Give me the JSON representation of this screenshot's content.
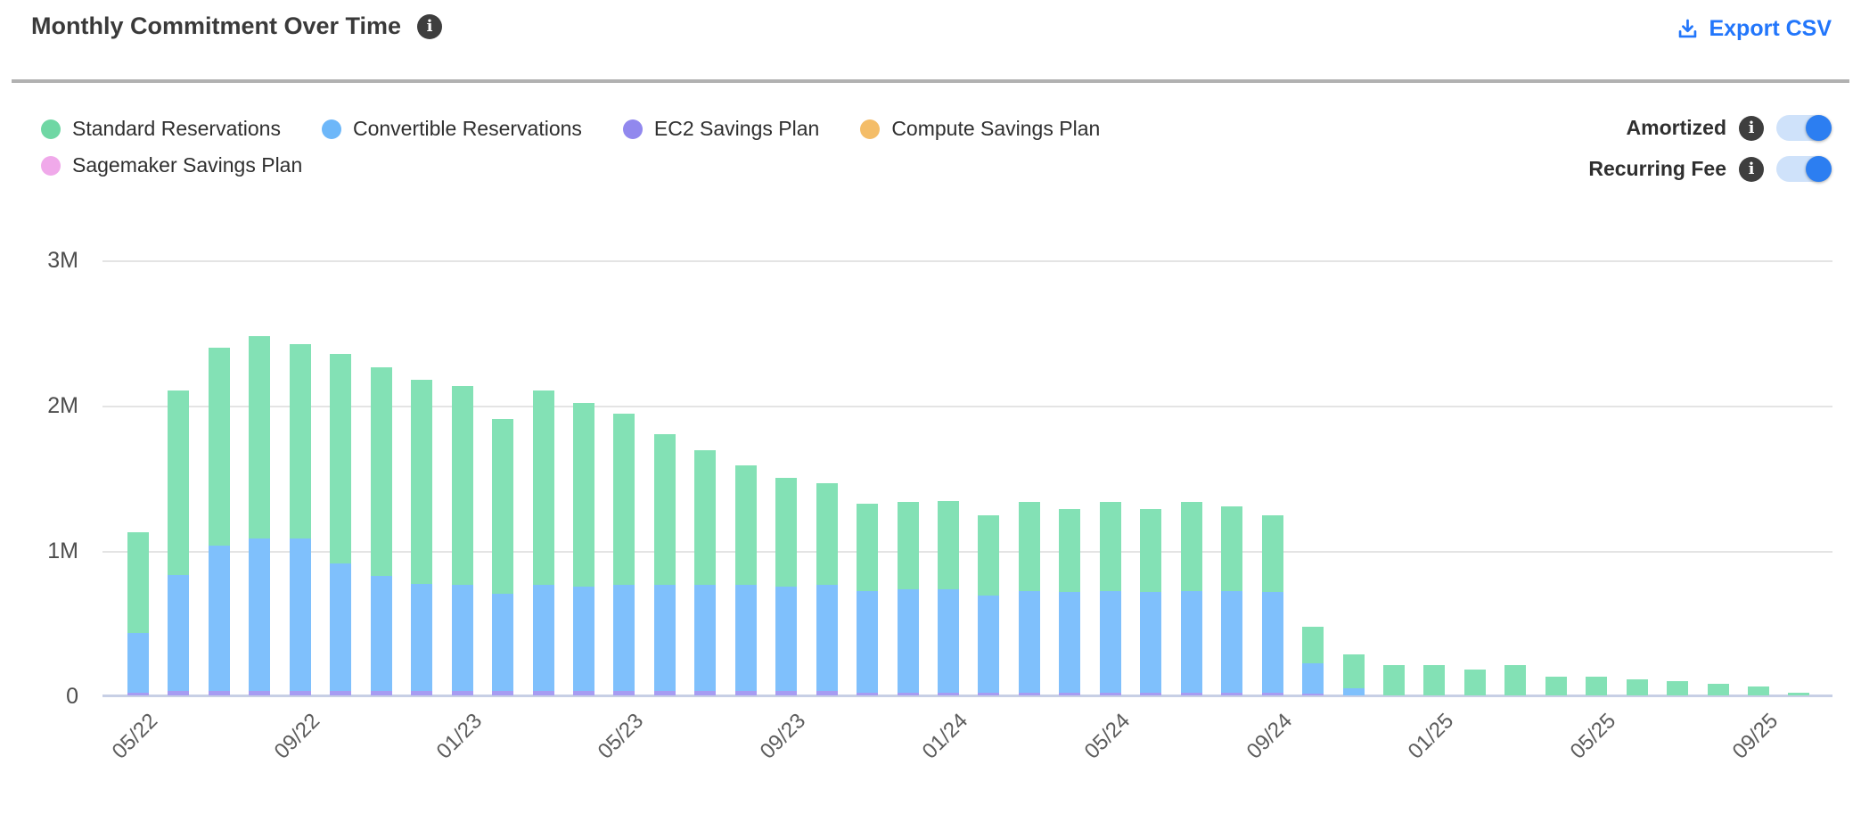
{
  "header": {
    "title": "Monthly Commitment Over Time",
    "export_label": "Export CSV",
    "export_color": "#2276fb"
  },
  "legend": [
    {
      "label": "Standard Reservations",
      "color": "#6fd7a4"
    },
    {
      "label": "Convertible Reservations",
      "color": "#6db7f9"
    },
    {
      "label": "EC2 Savings Plan",
      "color": "#9188ee"
    },
    {
      "label": "Compute Savings Plan",
      "color": "#f4bd68"
    },
    {
      "label": "Sagemaker Savings Plan",
      "color": "#f0a9ea"
    }
  ],
  "toggles": [
    {
      "label": "Amortized",
      "on": true
    },
    {
      "label": "Recurring Fee",
      "on": true
    }
  ],
  "toggle_colors": {
    "track": "#cfe2fa",
    "knob": "#2c7ef1"
  },
  "chart_data": {
    "type": "bar",
    "stacked": true,
    "title": "Monthly Commitment Over Time",
    "unit": "M USD",
    "ylim": [
      0,
      3
    ],
    "y_ticks": [
      "3M",
      "2M",
      "1M",
      "0"
    ],
    "x_label_every": 4,
    "grid": true,
    "legend_position": "top-left",
    "categories": [
      "05/22",
      "06/22",
      "07/22",
      "08/22",
      "09/22",
      "10/22",
      "11/22",
      "12/22",
      "01/23",
      "02/23",
      "03/23",
      "04/23",
      "05/23",
      "06/23",
      "07/23",
      "08/23",
      "09/23",
      "10/23",
      "11/23",
      "12/23",
      "01/24",
      "02/24",
      "03/24",
      "04/24",
      "05/24",
      "06/24",
      "07/24",
      "08/24",
      "09/24",
      "10/24",
      "11/24",
      "12/24",
      "01/25",
      "02/25",
      "03/25",
      "04/25",
      "05/25",
      "06/25",
      "07/25",
      "08/25",
      "09/25",
      "10/25"
    ],
    "series": [
      {
        "name": "Standard Reservations",
        "color": "#83e1b5",
        "values": [
          0.69,
          1.27,
          1.36,
          1.39,
          1.34,
          1.44,
          1.44,
          1.4,
          1.37,
          1.2,
          1.34,
          1.26,
          1.18,
          1.04,
          0.93,
          0.82,
          0.75,
          0.7,
          0.6,
          0.6,
          0.61,
          0.55,
          0.61,
          0.57,
          0.61,
          0.57,
          0.61,
          0.58,
          0.53,
          0.25,
          0.23,
          0.21,
          0.21,
          0.18,
          0.21,
          0.13,
          0.13,
          0.11,
          0.1,
          0.08,
          0.06,
          0.02
        ]
      },
      {
        "name": "Convertible Reservations",
        "color": "#7fc0fc",
        "values": [
          0.41,
          0.8,
          1.0,
          1.05,
          1.05,
          0.88,
          0.79,
          0.74,
          0.73,
          0.67,
          0.73,
          0.72,
          0.73,
          0.73,
          0.73,
          0.73,
          0.72,
          0.73,
          0.7,
          0.71,
          0.71,
          0.67,
          0.7,
          0.69,
          0.7,
          0.69,
          0.7,
          0.7,
          0.69,
          0.21,
          0.05,
          0,
          0,
          0,
          0,
          0,
          0,
          0,
          0,
          0,
          0,
          0
        ]
      },
      {
        "name": "EC2 Savings Plan",
        "color": "#a79cf2",
        "values": [
          0.02,
          0.03,
          0.03,
          0.03,
          0.03,
          0.03,
          0.03,
          0.03,
          0.03,
          0.03,
          0.03,
          0.03,
          0.03,
          0.03,
          0.03,
          0.03,
          0.03,
          0.03,
          0.02,
          0.02,
          0.02,
          0.02,
          0.02,
          0.02,
          0.02,
          0.02,
          0.02,
          0.02,
          0.02,
          0.01,
          0,
          0,
          0,
          0,
          0,
          0,
          0,
          0,
          0,
          0,
          0,
          0
        ]
      },
      {
        "name": "Compute Savings Plan",
        "color": "#f4bd68",
        "values": [
          0,
          0,
          0,
          0,
          0,
          0,
          0,
          0,
          0,
          0,
          0,
          0,
          0,
          0,
          0,
          0,
          0,
          0,
          0,
          0,
          0,
          0,
          0,
          0,
          0,
          0,
          0,
          0,
          0,
          0,
          0,
          0,
          0,
          0,
          0,
          0,
          0,
          0,
          0,
          0,
          0,
          0
        ]
      },
      {
        "name": "Sagemaker Savings Plan",
        "color": "#f0a9ea",
        "values": [
          0,
          0,
          0,
          0,
          0,
          0,
          0,
          0,
          0,
          0,
          0,
          0,
          0,
          0,
          0,
          0,
          0,
          0,
          0,
          0,
          0,
          0,
          0,
          0,
          0,
          0,
          0,
          0,
          0,
          0,
          0,
          0,
          0,
          0,
          0,
          0,
          0,
          0,
          0,
          0,
          0,
          0
        ]
      }
    ]
  }
}
